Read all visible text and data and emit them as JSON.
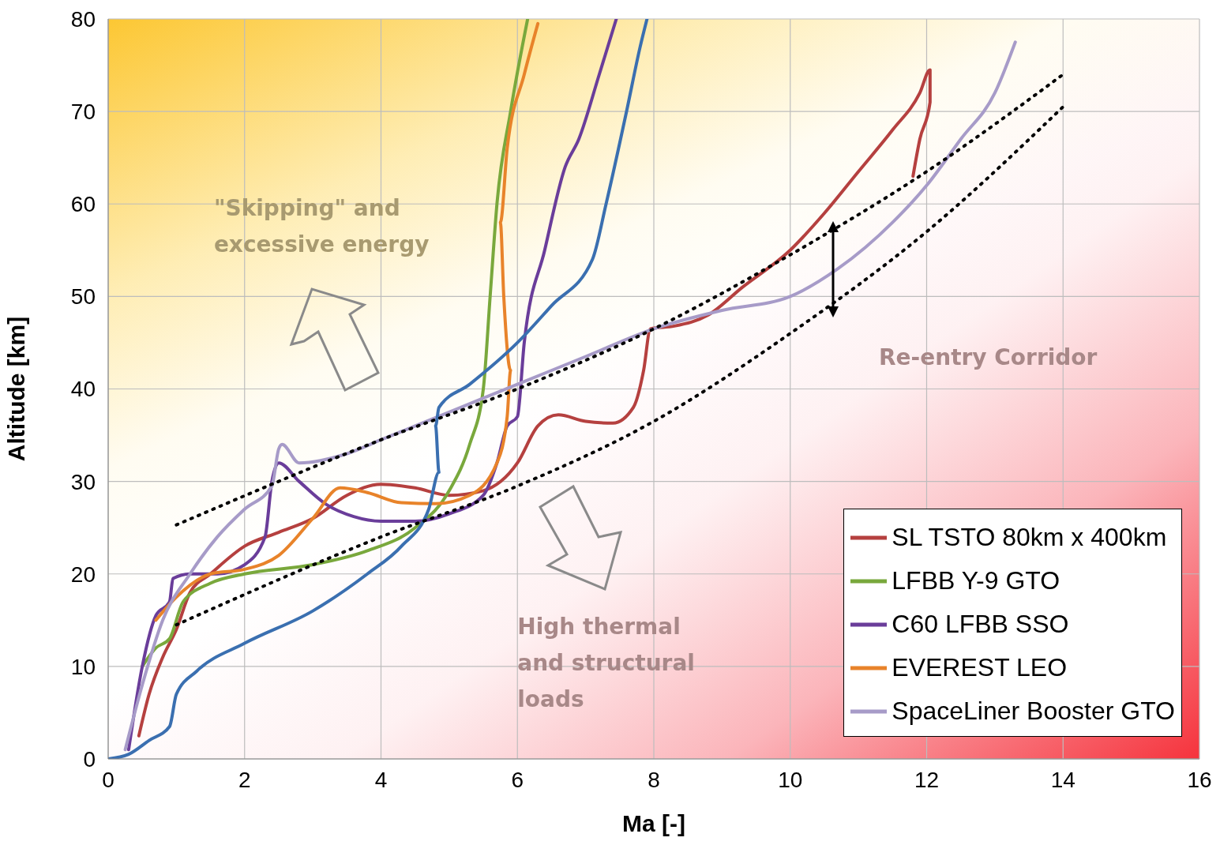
{
  "chart_data": {
    "type": "line",
    "xlabel": "Ma [-]",
    "ylabel": "Altitude [km]",
    "xlim": [
      0,
      16
    ],
    "xticks": [
      0,
      2,
      4,
      6,
      8,
      10,
      12,
      14,
      16
    ],
    "ylim": [
      0,
      80
    ],
    "yticks": [
      0,
      10,
      20,
      30,
      40,
      50,
      60,
      70,
      80
    ],
    "grid": true,
    "legend": "bottom right",
    "marker": "none",
    "annotations": [
      "\"Skipping\" and excessive energy",
      "High thermal and structural loads",
      "Re-entry Corridor"
    ],
    "series": [
      {
        "name": "SL TSTO 80km x 400km",
        "color": "#b5403f",
        "x": [
          0.45,
          0.6,
          0.8,
          1,
          1.2,
          1.5,
          2,
          2.5,
          3,
          3.5,
          4,
          4.5,
          5,
          5.5,
          6,
          6.3,
          6.6,
          7,
          7.4,
          7.7,
          7.85,
          7.95,
          8.3,
          8.8,
          9.3,
          10,
          10.5,
          11,
          11.5,
          11.9,
          12.05,
          12.05,
          11.9,
          11.8
        ],
        "values": [
          2.5,
          7,
          11,
          14,
          18,
          20,
          23,
          24.5,
          26,
          28.5,
          29.7,
          29.3,
          28.5,
          29,
          32,
          36,
          37.2,
          36.5,
          36.3,
          38,
          42,
          46.5,
          46.8,
          48,
          51,
          55,
          59,
          63.5,
          68,
          72,
          74.5,
          71,
          67,
          63
        ]
      },
      {
        "name": "LFBB Y-9 GTO",
        "color": "#79a83c",
        "x": [
          0.5,
          0.7,
          0.9,
          1.1,
          1.5,
          2,
          3,
          3.8,
          4.5,
          5,
          5.3,
          5.5,
          5.6,
          5.7,
          5.9,
          6.15
        ],
        "values": [
          10,
          12,
          13,
          17,
          19,
          20,
          21,
          22.5,
          25,
          29,
          34,
          40,
          50,
          60,
          70,
          80
        ]
      },
      {
        "name": "C60 LFBB SSO",
        "color": "#6a3d9a",
        "x": [
          0.3,
          0.5,
          0.7,
          0.9,
          0.95,
          1.2,
          1.6,
          2,
          2.3,
          2.4,
          2.5,
          2.8,
          3.2,
          3.6,
          4,
          4.5,
          5,
          5.5,
          5.7,
          5.85,
          6,
          6.1,
          6.4,
          6.7,
          6.9,
          7.2,
          7.45
        ],
        "values": [
          1,
          10,
          15.5,
          17,
          19.5,
          20,
          20,
          21,
          24,
          30,
          32,
          30,
          27.5,
          26.2,
          25.7,
          25.7,
          26.5,
          28.5,
          32,
          36,
          37,
          45,
          55,
          64,
          67,
          74,
          80
        ]
      },
      {
        "name": "EVEREST LEO",
        "color": "#e8832a",
        "x": [
          0.7,
          1,
          1.5,
          2,
          2.5,
          3,
          3.4,
          3.8,
          4.3,
          4.8,
          5.3,
          5.7,
          5.85,
          5.9,
          5.8,
          5.75,
          5.85,
          6.1,
          6.3
        ],
        "values": [
          15,
          17.5,
          20,
          20.5,
          22,
          26,
          29.3,
          28.8,
          27.7,
          27.6,
          28.5,
          32,
          37,
          42,
          50,
          58,
          66,
          74,
          79.5
        ]
      },
      {
        "name": "SpaceLiner Booster GTO",
        "color": "#a79bc8",
        "x": [
          0.25,
          0.5,
          0.8,
          1.2,
          1.6,
          2,
          2.4,
          2.5,
          2.55,
          2.8,
          3.5,
          4,
          5,
          6,
          7,
          8,
          9,
          10,
          10.7,
          11.5,
          12,
          12.5,
          13,
          13.3
        ],
        "values": [
          1,
          8,
          15,
          20,
          24,
          27,
          29.5,
          33.5,
          34,
          32,
          33,
          34.5,
          37.5,
          40.5,
          43.5,
          46.5,
          48.5,
          50,
          53,
          58,
          62,
          67,
          72,
          77.5
        ]
      },
      {
        "color": "#3a6fb0",
        "x": [
          0,
          0.3,
          0.6,
          0.9,
          1,
          1.3,
          2,
          3,
          3.8,
          4.3,
          4.7,
          4.85,
          4.8,
          4.85,
          5.3,
          6,
          6.5,
          7.1,
          7.3,
          7.6,
          7.8,
          7.9
        ],
        "values": [
          0,
          0.5,
          2,
          3.5,
          7,
          9.5,
          12.5,
          16,
          20,
          23,
          27,
          31,
          36,
          38,
          40.5,
          45,
          49,
          54,
          60,
          70,
          77,
          80
        ]
      },
      {
        "color": "#000000",
        "line_style": "dotted",
        "x": [
          1,
          4,
          6,
          8,
          10,
          12,
          14
        ],
        "values": [
          25.3,
          34.5,
          40,
          46.5,
          54.5,
          63.5,
          74
        ]
      },
      {
        "color": "#000000",
        "line_style": "dotted",
        "x": [
          1,
          4,
          6,
          8,
          10,
          12,
          14
        ],
        "values": [
          14.5,
          24,
          29.5,
          36.5,
          46,
          57,
          70.5
        ]
      }
    ]
  }
}
